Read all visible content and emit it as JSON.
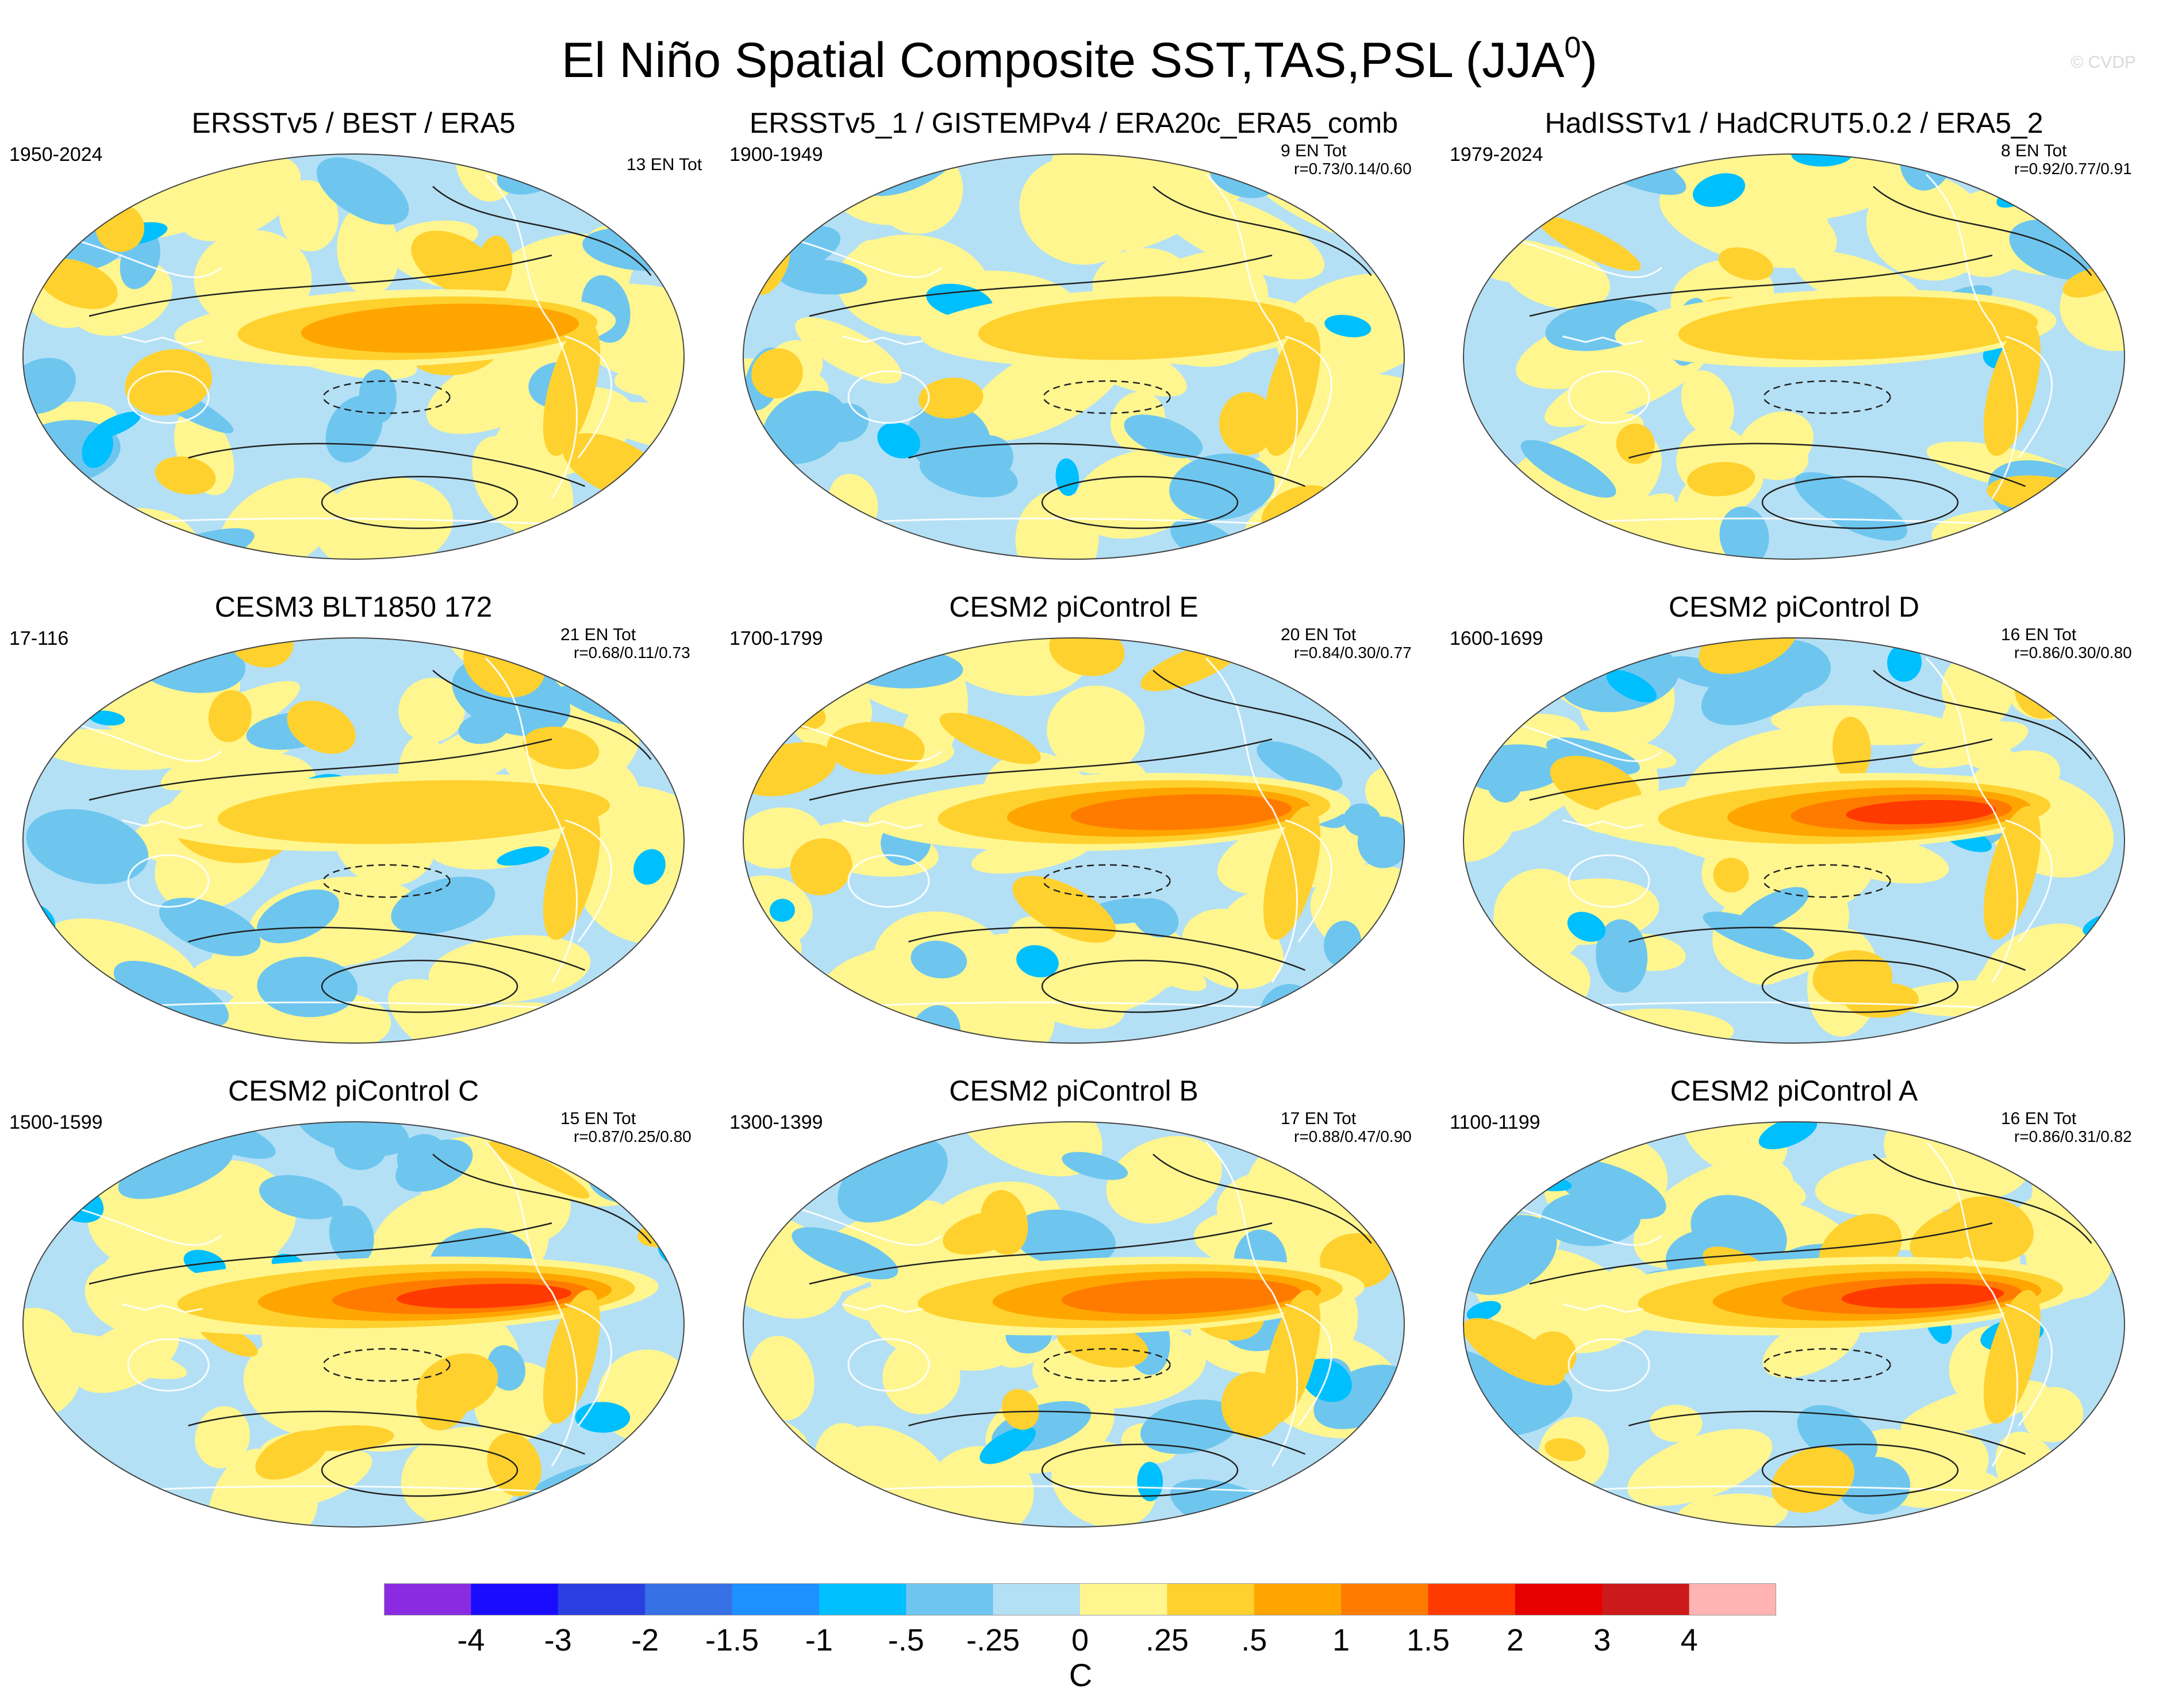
{
  "title": "El Niño Spatial Composite SST,TAS,PSL (JJA",
  "title_sup": "0",
  "title_close": ")",
  "watermark": "© CVDP",
  "panels": [
    {
      "title": "ERSSTv5 / BEST / ERA5",
      "period": "1950-2024",
      "count": "13 EN Tot",
      "corr": ""
    },
    {
      "title": "ERSSTv5_1 / GISTEMPv4 / ERA20c_ERA5_comb",
      "period": "1900-1949",
      "count": "9 EN Tot",
      "corr": "r=0.73/0.14/0.60"
    },
    {
      "title": "HadISSTv1 / HadCRUT5.0.2 / ERA5_2",
      "period": "1979-2024",
      "count": "8 EN Tot",
      "corr": "r=0.92/0.77/0.91"
    },
    {
      "title": "CESM3 BLT1850 172",
      "period": "17-116",
      "count": "21 EN Tot",
      "corr": "r=0.68/0.11/0.73"
    },
    {
      "title": "CESM2 piControl E",
      "period": "1700-1799",
      "count": "20 EN Tot",
      "corr": "r=0.84/0.30/0.77"
    },
    {
      "title": "CESM2 piControl D",
      "period": "1600-1699",
      "count": "16 EN Tot",
      "corr": "r=0.86/0.30/0.80"
    },
    {
      "title": "CESM2 piControl C",
      "period": "1500-1599",
      "count": "15 EN Tot",
      "corr": "r=0.87/0.25/0.80"
    },
    {
      "title": "CESM2 piControl B",
      "period": "1300-1399",
      "count": "17 EN Tot",
      "corr": "r=0.88/0.47/0.90"
    },
    {
      "title": "CESM2 piControl A",
      "period": "1100-1199",
      "count": "16 EN Tot",
      "corr": "r=0.86/0.31/0.82"
    }
  ],
  "chart_data": {
    "type": "heatmap",
    "title": "El Niño Spatial Composite SST,TAS,PSL (JJA0)",
    "projection": "Robinson global, Pacific-centered",
    "variables": [
      "SST (shaded)",
      "TAS (shaded)",
      "PSL (contours, dashed = negative)"
    ],
    "colorbar": {
      "units": "C",
      "levels": [
        "-4",
        "-3",
        "-2",
        "-1.5",
        "-1",
        "-.5",
        "-.25",
        "0",
        ".25",
        ".5",
        "1",
        "1.5",
        "2",
        "3",
        "4"
      ],
      "colors": [
        "#8a2be2",
        "#1a0dff",
        "#2b3fe0",
        "#3671e6",
        "#1e90ff",
        "#00bfff",
        "#6ec6ef",
        "#b4e0f5",
        "#fff68f",
        "#ffd12e",
        "#ffa500",
        "#ff7b00",
        "#ff3a00",
        "#e60000",
        "#cc1a1a",
        "#ffb3b3"
      ]
    },
    "series": [
      {
        "name": "ERSSTv5 / BEST / ERA5",
        "nino_max_c": 1.0,
        "warm_tongue_extent": 0.55
      },
      {
        "name": "ERSSTv5_1 / GISTEMPv4 / ERA20c_ERA5_comb",
        "nino_max_c": 0.9,
        "warm_tongue_extent": 0.5
      },
      {
        "name": "HadISSTv1 / HadCRUT5.0.2 / ERA5_2",
        "nino_max_c": 0.8,
        "warm_tongue_extent": 0.55
      },
      {
        "name": "CESM3 BLT1850 172",
        "nino_max_c": 0.7,
        "warm_tongue_extent": 0.6
      },
      {
        "name": "CESM2 piControl E",
        "nino_max_c": 1.5,
        "warm_tongue_extent": 0.6
      },
      {
        "name": "CESM2 piControl D",
        "nino_max_c": 2.0,
        "warm_tongue_extent": 0.6
      },
      {
        "name": "CESM2 piControl C",
        "nino_max_c": 2.0,
        "warm_tongue_extent": 0.7
      },
      {
        "name": "CESM2 piControl B",
        "nino_max_c": 1.5,
        "warm_tongue_extent": 0.65
      },
      {
        "name": "CESM2 piControl A",
        "nino_max_c": 2.0,
        "warm_tongue_extent": 0.65
      }
    ]
  }
}
